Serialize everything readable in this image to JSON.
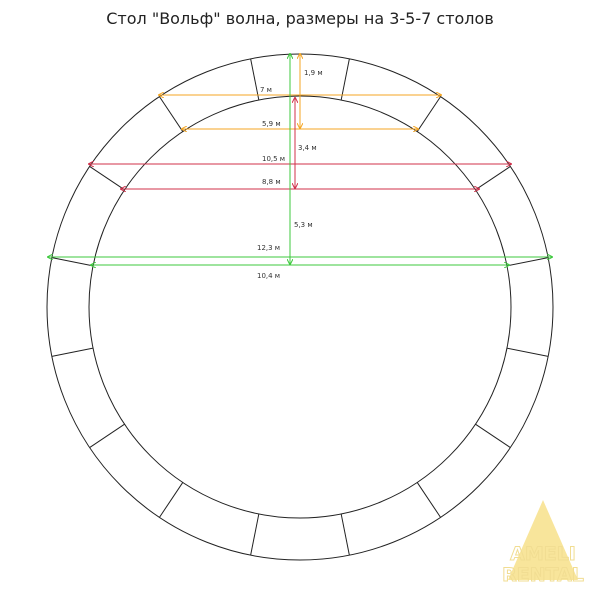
{
  "title": "Стол \"Вольф\" волна, размеры на 3-5-7 столов",
  "dimensions": {
    "outer_top_chord": "7 м",
    "inner_top_chord": "5,9 м",
    "outer_mid_chord": "10,5 м",
    "inner_mid_chord": "8,8 м",
    "outer_diameter": "12,3 м",
    "inner_diameter": "10,4 м",
    "top_depth": "1,9 м",
    "chord_depth": "3,4 м",
    "radius": "5,3 м"
  },
  "watermark": {
    "line1": "AMELI",
    "line2": "RENTAL"
  }
}
